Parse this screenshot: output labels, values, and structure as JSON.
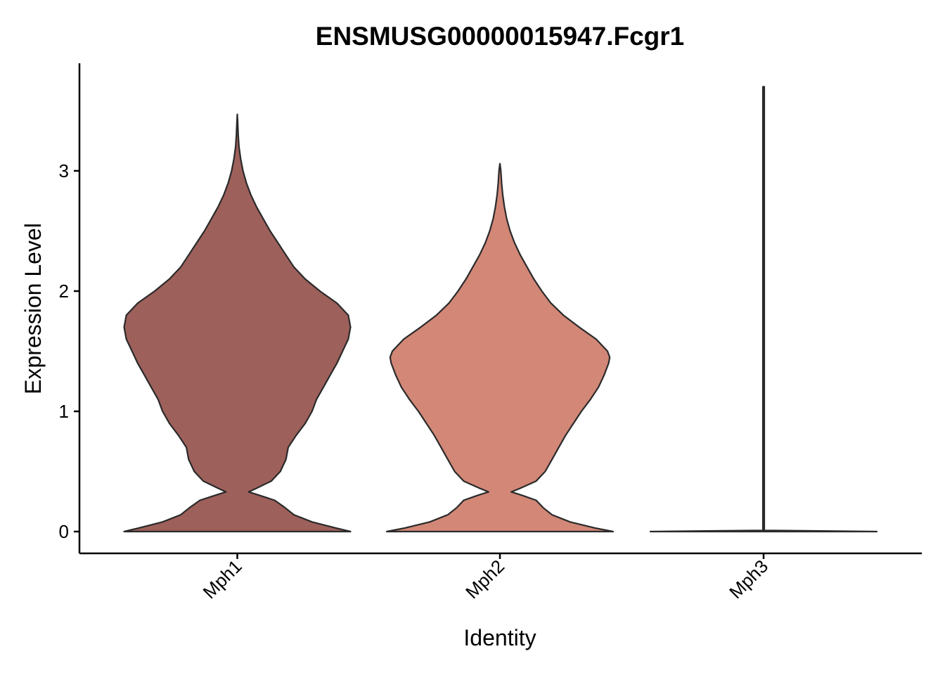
{
  "chart_data": {
    "type": "violin",
    "title": "ENSMUSG00000015947.Fcgr1",
    "xlabel": "Identity",
    "ylabel": "Expression Level",
    "ylim": [
      -0.18,
      3.9
    ],
    "yticks": [
      0,
      1,
      2,
      3
    ],
    "legend": "none",
    "grid": false,
    "categories": [
      "Mph1",
      "Mph2",
      "Mph3"
    ],
    "series": [
      {
        "category": "Mph1",
        "color": "#9E605B",
        "max": 3.47,
        "profile": [
          [
            0,
            1.0
          ],
          [
            0.03,
            0.87
          ],
          [
            0.08,
            0.66
          ],
          [
            0.14,
            0.5
          ],
          [
            0.2,
            0.42
          ],
          [
            0.26,
            0.33
          ],
          [
            0.3,
            0.2
          ],
          [
            0.33,
            0.1
          ],
          [
            0.36,
            0.17
          ],
          [
            0.42,
            0.3
          ],
          [
            0.5,
            0.38
          ],
          [
            0.6,
            0.43
          ],
          [
            0.7,
            0.45
          ],
          [
            0.8,
            0.52
          ],
          [
            0.9,
            0.6
          ],
          [
            1.0,
            0.66
          ],
          [
            1.1,
            0.7
          ],
          [
            1.2,
            0.76
          ],
          [
            1.3,
            0.82
          ],
          [
            1.4,
            0.88
          ],
          [
            1.5,
            0.93
          ],
          [
            1.6,
            0.98
          ],
          [
            1.7,
            1.0
          ],
          [
            1.8,
            0.98
          ],
          [
            1.9,
            0.88
          ],
          [
            2.0,
            0.73
          ],
          [
            2.1,
            0.6
          ],
          [
            2.2,
            0.5
          ],
          [
            2.3,
            0.43
          ],
          [
            2.4,
            0.36
          ],
          [
            2.5,
            0.29
          ],
          [
            2.6,
            0.23
          ],
          [
            2.7,
            0.17
          ],
          [
            2.8,
            0.12
          ],
          [
            2.9,
            0.08
          ],
          [
            3.0,
            0.05
          ],
          [
            3.1,
            0.03
          ],
          [
            3.2,
            0.015
          ],
          [
            3.3,
            0.008
          ],
          [
            3.4,
            0.004
          ],
          [
            3.47,
            0.0
          ]
        ]
      },
      {
        "category": "Mph2",
        "color": "#D28777",
        "max": 3.06,
        "profile": [
          [
            0,
            1.0
          ],
          [
            0.03,
            0.84
          ],
          [
            0.08,
            0.62
          ],
          [
            0.14,
            0.46
          ],
          [
            0.2,
            0.38
          ],
          [
            0.26,
            0.32
          ],
          [
            0.3,
            0.2
          ],
          [
            0.33,
            0.1
          ],
          [
            0.36,
            0.18
          ],
          [
            0.42,
            0.32
          ],
          [
            0.5,
            0.4
          ],
          [
            0.6,
            0.46
          ],
          [
            0.7,
            0.52
          ],
          [
            0.8,
            0.58
          ],
          [
            0.9,
            0.65
          ],
          [
            1.0,
            0.72
          ],
          [
            1.1,
            0.8
          ],
          [
            1.2,
            0.87
          ],
          [
            1.3,
            0.92
          ],
          [
            1.4,
            0.96
          ],
          [
            1.45,
            0.97
          ],
          [
            1.5,
            0.95
          ],
          [
            1.6,
            0.85
          ],
          [
            1.7,
            0.7
          ],
          [
            1.8,
            0.56
          ],
          [
            1.9,
            0.45
          ],
          [
            2.0,
            0.37
          ],
          [
            2.1,
            0.3
          ],
          [
            2.2,
            0.24
          ],
          [
            2.3,
            0.18
          ],
          [
            2.4,
            0.13
          ],
          [
            2.5,
            0.09
          ],
          [
            2.6,
            0.06
          ],
          [
            2.7,
            0.04
          ],
          [
            2.8,
            0.025
          ],
          [
            2.9,
            0.015
          ],
          [
            3.0,
            0.008
          ],
          [
            3.06,
            0.0
          ]
        ]
      },
      {
        "category": "Mph3",
        "color": "#C97B74",
        "max": 3.7,
        "profile": [
          [
            0,
            1.0
          ],
          [
            0.005,
            0.5
          ],
          [
            0.01,
            0.006
          ],
          [
            0.05,
            0.006
          ],
          [
            3.7,
            0.006
          ]
        ]
      }
    ]
  }
}
